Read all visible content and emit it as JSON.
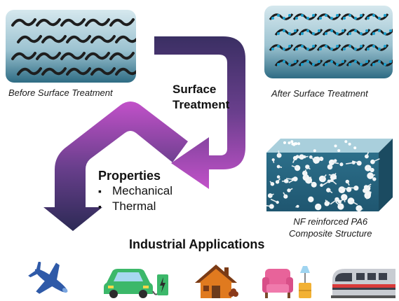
{
  "captions": {
    "before": "Before Surface Treatment",
    "after": "After Surface Treatment",
    "composite_line1": "NF reinforced PA6",
    "composite_line2": "Composite Structure"
  },
  "labels": {
    "surface_treatment_line1": "Surface",
    "surface_treatment_line2": "Treatment",
    "properties_title": "Properties",
    "properties_items": [
      "Mechanical",
      "Thermal"
    ],
    "industrial_title": "Industrial Applications"
  },
  "application_icons": [
    "airplane-icon",
    "electric-car-charging-icon",
    "house-icon",
    "armchair-lamp-icon",
    "train-icon"
  ],
  "colors": {
    "panel_top": "#cfe3ea",
    "panel_bottom": "#2f6f86",
    "arrow_dark": "#3a2f63",
    "arrow_magenta": "#c251c9",
    "fiber": "#1c1c1c",
    "dot": "#1aa0cf"
  }
}
